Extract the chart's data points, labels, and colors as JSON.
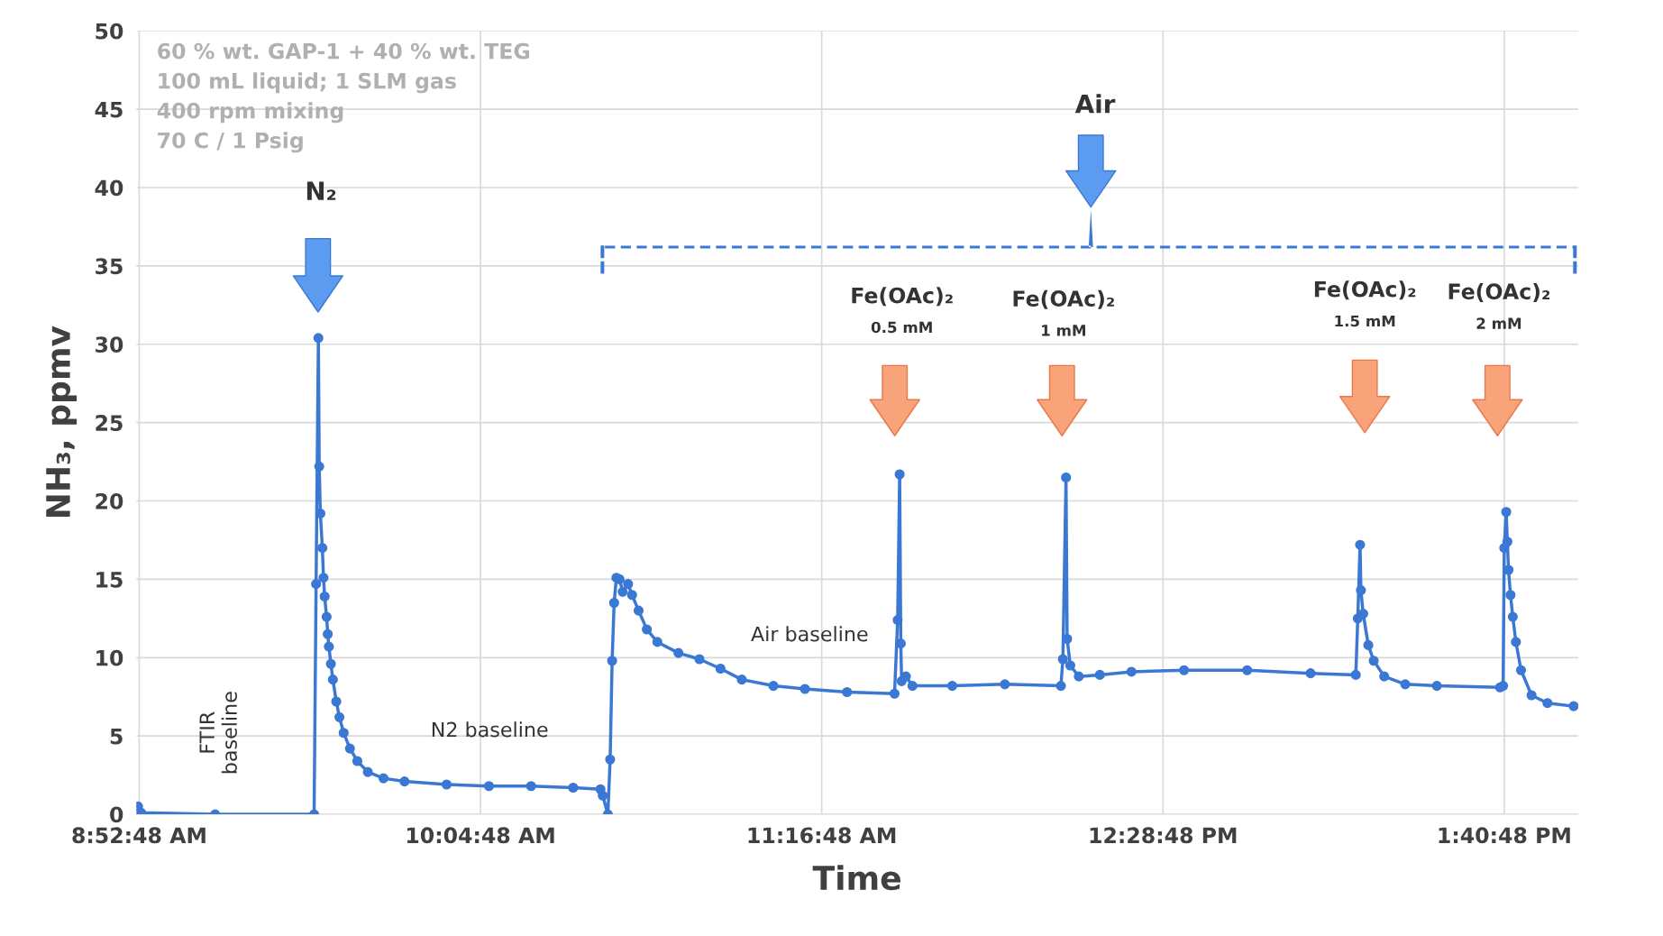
{
  "chart_data": {
    "type": "line",
    "xlabel": "Time",
    "ylabel": "NH₃, ppmv",
    "x": [
      8.876,
      8.887,
      9.147,
      9.495,
      9.502,
      9.51,
      9.513,
      9.517,
      9.524,
      9.528,
      9.532,
      9.539,
      9.543,
      9.547,
      9.554,
      9.561,
      9.573,
      9.584,
      9.599,
      9.621,
      9.647,
      9.684,
      9.739,
      9.813,
      9.961,
      10.11,
      10.258,
      10.406,
      10.502,
      10.51,
      10.528,
      10.536,
      10.543,
      10.55,
      10.558,
      10.569,
      10.58,
      10.599,
      10.613,
      10.636,
      10.665,
      10.702,
      10.776,
      10.85,
      10.924,
      10.999,
      11.11,
      11.221,
      11.369,
      11.536,
      11.547,
      11.554,
      11.558,
      11.561,
      11.576,
      11.599,
      11.739,
      11.924,
      12.121,
      12.128,
      12.139,
      12.143,
      12.154,
      12.184,
      12.258,
      12.369,
      12.554,
      12.776,
      12.999,
      13.158,
      13.165,
      13.173,
      13.176,
      13.184,
      13.202,
      13.221,
      13.258,
      13.332,
      13.443,
      13.665,
      13.676,
      13.68,
      13.687,
      13.691,
      13.695,
      13.702,
      13.71,
      13.721,
      13.739,
      13.776,
      13.832,
      13.924
    ],
    "series": [
      {
        "color": "#3a78d4",
        "values": [
          0.5,
          0.1,
          0.0,
          0.0,
          14.7,
          30.4,
          22.2,
          19.2,
          17.0,
          15.1,
          13.9,
          12.6,
          11.5,
          10.7,
          9.6,
          8.6,
          7.2,
          6.2,
          5.2,
          4.2,
          3.4,
          2.7,
          2.3,
          2.1,
          1.9,
          1.8,
          1.8,
          1.7,
          1.6,
          1.2,
          0.0,
          3.5,
          9.8,
          13.5,
          15.1,
          15.0,
          14.2,
          14.7,
          14.0,
          13.0,
          11.8,
          11.0,
          10.3,
          9.9,
          9.3,
          8.6,
          8.2,
          8.0,
          7.8,
          7.7,
          12.4,
          21.7,
          10.9,
          8.5,
          8.8,
          8.2,
          8.2,
          8.3,
          8.2,
          9.9,
          21.5,
          11.2,
          9.5,
          8.8,
          8.9,
          9.1,
          9.2,
          9.2,
          9.0,
          8.9,
          12.5,
          17.2,
          14.3,
          12.8,
          10.8,
          9.8,
          8.8,
          8.3,
          8.2,
          8.1,
          8.2,
          17.0,
          19.3,
          17.4,
          15.6,
          14.0,
          12.6,
          11.0,
          9.2,
          7.6,
          7.1,
          6.9
        ]
      }
    ],
    "xlim": [
      8.87,
      13.94
    ],
    "xticks": [
      {
        "value": 8.88,
        "label": "8:52:48 AM"
      },
      {
        "value": 10.08,
        "label": "10:04:48 AM"
      },
      {
        "value": 11.28,
        "label": "11:16:48 AM"
      },
      {
        "value": 12.48,
        "label": "12:28:48 PM"
      },
      {
        "value": 13.68,
        "label": "1:40:48 PM"
      }
    ],
    "ylim": [
      0,
      50
    ],
    "yticks": [
      0,
      5,
      10,
      15,
      20,
      25,
      30,
      35,
      40,
      45,
      50
    ],
    "grid": true,
    "marker": "circle",
    "line_style": "solid",
    "legend": false,
    "annotations": [
      "60 % wt. GAP-1 + 40 % wt. TEG",
      "100 mL liquid; 1 SLM gas",
      "400 rpm mixing",
      "70 C / 1 Psig",
      "N₂",
      "Air",
      "Fe(OAc)₂\n0.5 mM",
      "Fe(OAc)₂\n1 mM",
      "Fe(OAc)₂\n1.5 mM",
      "Fe(OAc)₂\n2 mM",
      "FTIR\nbaseline",
      "N2 baseline",
      "Air baseline"
    ]
  }
}
